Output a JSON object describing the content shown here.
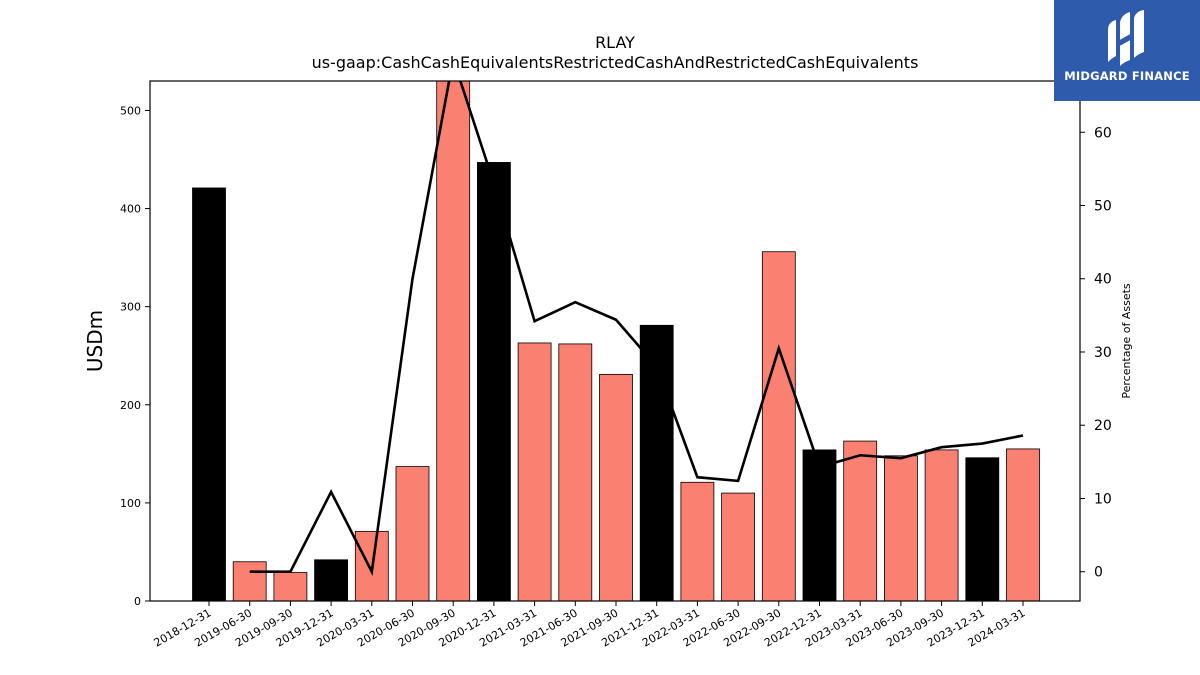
{
  "chart_data": {
    "type": "bar+line",
    "title": "RLAY",
    "subtitle": "us-gaap:CashCashEquivalentsRestrictedCashAndRestrictedCashEquivalents",
    "ylabel": "USDm",
    "y2label": "Percentage of Assets",
    "ylim": [
      0,
      530
    ],
    "y2lim": [
      -4,
      67
    ],
    "yticks": [
      0,
      100,
      200,
      300,
      400,
      500
    ],
    "y2ticks": [
      0,
      10,
      20,
      30,
      40,
      50,
      60
    ],
    "categories": [
      "2018-12-31",
      "2019-06-30",
      "2019-09-30",
      "2019-12-31",
      "2020-03-31",
      "2020-06-30",
      "2020-09-30",
      "2020-12-31",
      "2021-03-31",
      "2021-06-30",
      "2021-09-30",
      "2021-12-31",
      "2022-03-31",
      "2022-06-30",
      "2022-09-30",
      "2022-12-31",
      "2023-03-31",
      "2023-06-30",
      "2023-09-30",
      "2023-12-31",
      "2024-03-31"
    ],
    "bars": {
      "values": [
        421,
        40,
        29,
        42,
        71,
        137,
        535,
        447,
        263,
        262,
        231,
        281,
        121,
        110,
        356,
        154,
        163,
        148,
        154,
        146,
        155
      ],
      "colors": [
        "#000000",
        "#fa8072",
        "#fa8072",
        "#000000",
        "#fa8072",
        "#fa8072",
        "#fa8072",
        "#000000",
        "#fa8072",
        "#fa8072",
        "#fa8072",
        "#000000",
        "#fa8072",
        "#fa8072",
        "#fa8072",
        "#000000",
        "#fa8072",
        "#fa8072",
        "#fa8072",
        "#000000",
        "#fa8072"
      ]
    },
    "line": {
      "values": [
        null,
        0,
        0,
        10.9,
        0,
        40,
        70,
        53,
        34.2,
        36.8,
        34.4,
        28,
        12.9,
        12.4,
        30.5,
        14.3,
        15.9,
        15.5,
        17,
        17.5,
        18.6
      ],
      "color": "#000000"
    },
    "grid": false
  },
  "logo": {
    "text": "MIDGARD FINANCE",
    "color": "#2f5bad"
  }
}
